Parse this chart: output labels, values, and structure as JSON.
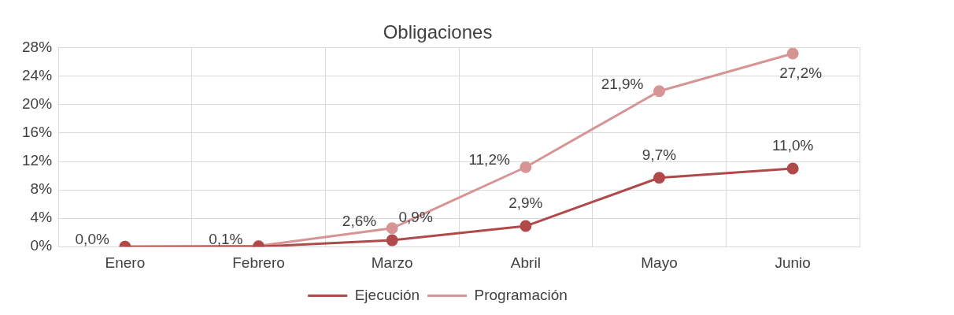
{
  "chart_data": {
    "type": "line",
    "title": "Obligaciones",
    "categories": [
      "Enero",
      "Febrero",
      "Marzo",
      "Abril",
      "Mayo",
      "Junio"
    ],
    "series": [
      {
        "name": "Ejecución",
        "color": "#b0494a",
        "values": [
          0.0,
          0.0,
          0.9,
          2.9,
          9.7,
          11.0
        ],
        "value_labels": [
          null,
          null,
          "0,9%",
          "2,9%",
          "9,7%",
          "11,0%"
        ]
      },
      {
        "name": "Programación",
        "color": "#d69594",
        "values": [
          0.0,
          0.1,
          2.6,
          11.2,
          21.9,
          27.2
        ],
        "value_labels": [
          "0,0%",
          "0,1%",
          "2,6%",
          "11,2%",
          "21,9%",
          "27,2%"
        ]
      }
    ],
    "ylim": [
      0,
      28
    ],
    "yticks": [
      {
        "value": 0,
        "label": "0%"
      },
      {
        "value": 4,
        "label": "4%"
      },
      {
        "value": 8,
        "label": "8%"
      },
      {
        "value": 12,
        "label": "12%"
      },
      {
        "value": 16,
        "label": "16%"
      },
      {
        "value": 20,
        "label": "20%"
      },
      {
        "value": 24,
        "label": "24%"
      },
      {
        "value": 28,
        "label": "28%"
      }
    ],
    "grid": true,
    "legend": "bottom",
    "marker": "circle",
    "line_style": "solid"
  }
}
